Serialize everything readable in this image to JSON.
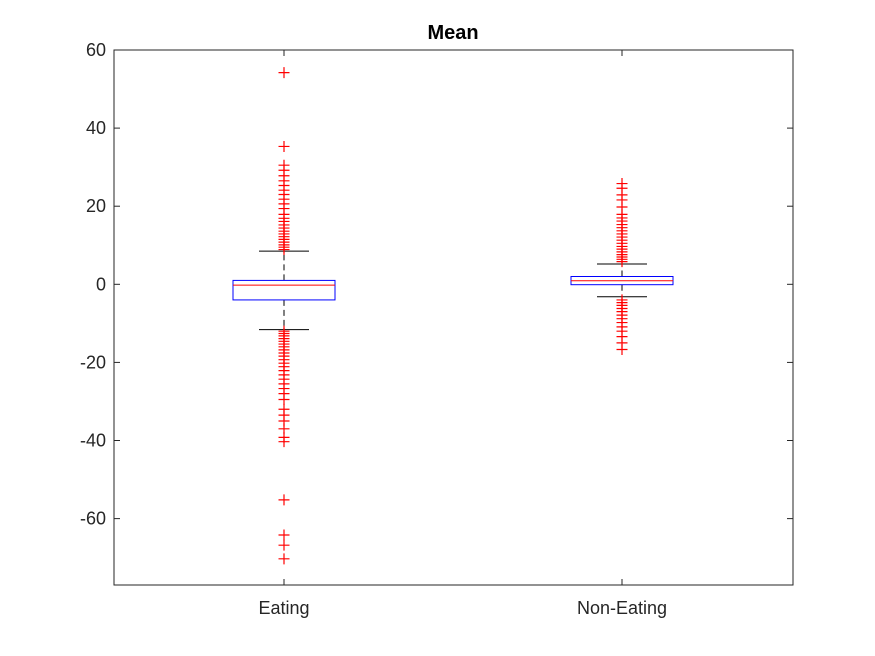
{
  "chart_data": {
    "type": "boxplot",
    "title": "Mean",
    "xlabel": "",
    "ylabel": "",
    "ylim": [
      -77,
      60
    ],
    "yticks": [
      60,
      40,
      20,
      0,
      -20,
      -40,
      -60
    ],
    "ytick_labels": [
      "60",
      "40",
      "20",
      "0",
      "-20",
      "-40",
      "-60"
    ],
    "categories": [
      "Eating",
      "Non-Eating"
    ],
    "grid": false,
    "colors": {
      "box": "#0000ff",
      "median": "#ff0000",
      "whisker": "#000000",
      "outlier": "#ff0000",
      "axis": "#262626"
    },
    "boxes": [
      {
        "name": "Eating",
        "q1": -4.0,
        "median": -0.2,
        "q3": 1.0,
        "whisker_low": -11.6,
        "whisker_high": 8.5,
        "outliers": [
          54.2,
          35.3,
          30.5,
          29.2,
          27.8,
          26.5,
          25.3,
          24.1,
          23.0,
          21.8,
          20.6,
          19.4,
          17.9,
          16.9,
          16.1,
          15.2,
          14.4,
          13.6,
          12.9,
          12.2,
          11.5,
          10.8,
          10.1,
          9.5,
          8.9,
          -12.0,
          -12.6,
          -13.2,
          -13.9,
          -14.6,
          -15.3,
          -16.0,
          -16.8,
          -17.6,
          -18.4,
          -19.3,
          -20.2,
          -21.1,
          -22.1,
          -23.2,
          -24.3,
          -25.5,
          -26.7,
          -28.0,
          -29.5,
          -32.0,
          -33.5,
          -35.0,
          -37.0,
          -39.2,
          -40.3,
          -55.2,
          -64.2,
          -66.8,
          -70.3
        ]
      },
      {
        "name": "Non-Eating",
        "q1": -0.1,
        "median": 0.9,
        "q3": 2.0,
        "whisker_low": -3.2,
        "whisker_high": 5.2,
        "outliers": [
          25.8,
          24.6,
          22.9,
          21.6,
          19.8,
          17.9,
          17.0,
          16.2,
          15.3,
          14.5,
          13.7,
          12.9,
          12.1,
          11.3,
          10.5,
          9.7,
          9.0,
          8.3,
          7.6,
          7.0,
          6.4,
          5.8,
          -4.0,
          -4.7,
          -5.4,
          -6.2,
          -7.0,
          -7.9,
          -8.8,
          -9.8,
          -10.9,
          -12.0,
          -13.4,
          -15.0,
          -16.7
        ]
      }
    ]
  }
}
